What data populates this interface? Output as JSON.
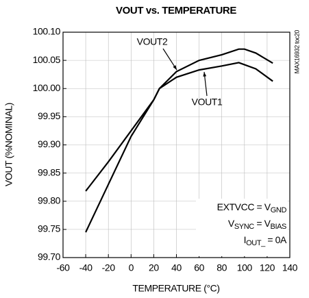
{
  "chart_data": {
    "type": "line",
    "title": "VOUT vs. TEMPERATURE",
    "xlabel": "TEMPERATURE (°C)",
    "ylabel": "VOUT (%NOMINAL)",
    "side_note": "MAX16932 toc20",
    "xlim": [
      -60,
      140
    ],
    "xticks": [
      -60,
      -40,
      -20,
      0,
      20,
      40,
      60,
      80,
      100,
      120,
      140
    ],
    "ylim": [
      99.7,
      100.1
    ],
    "yticks": [
      {
        "value": 99.7,
        "label": "99.70"
      },
      99.75,
      {
        "value": 99.8,
        "label": "99.80"
      },
      99.85,
      {
        "value": 99.9,
        "label": "99.90"
      },
      99.95,
      {
        "value": 100,
        "label": "100.00"
      },
      100.05,
      {
        "value": 100.1,
        "label": "100.10"
      }
    ],
    "grid": true,
    "series": [
      {
        "name": "VOUT1",
        "color": "#000000",
        "x": [
          -40,
          -20,
          0,
          20,
          25,
          40,
          60,
          80,
          95,
          110,
          125
        ],
        "values": [
          99.818,
          99.87,
          99.925,
          99.98,
          100.0,
          100.02,
          100.033,
          100.04,
          100.046,
          100.035,
          100.013
        ]
      },
      {
        "name": "VOUT2",
        "color": "#000000",
        "x": [
          -40,
          -20,
          0,
          20,
          25,
          40,
          60,
          80,
          95,
          100,
          110,
          125
        ],
        "values": [
          99.745,
          99.83,
          99.915,
          99.98,
          100.0,
          100.03,
          100.05,
          100.06,
          100.07,
          100.07,
          100.063,
          100.045
        ]
      }
    ],
    "conditions": [
      {
        "text": "EXTVCC = V",
        "sub": "GND"
      },
      {
        "prefix": "V",
        "prefix_sub": "SYNC",
        "text": " = V",
        "sub": "BIAS"
      },
      {
        "prefix": "I",
        "prefix_sub": "OUT_",
        "text": " = 0A"
      }
    ]
  }
}
